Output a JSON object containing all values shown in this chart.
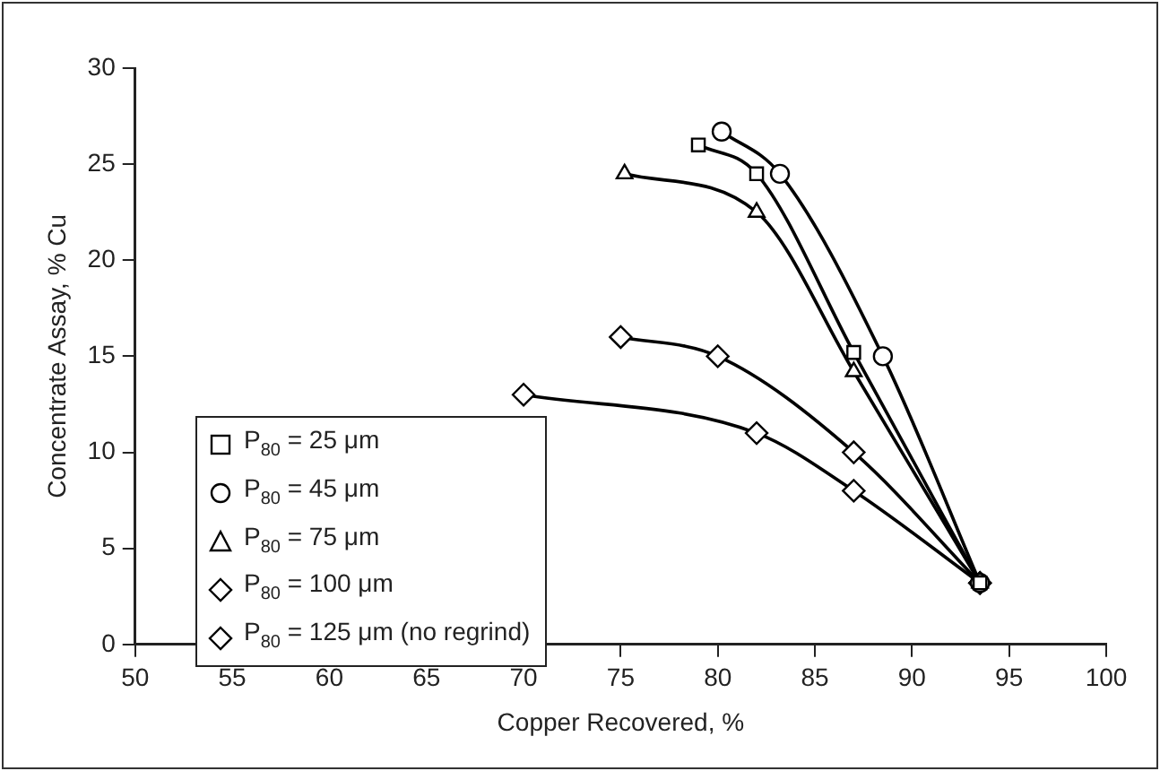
{
  "chart_data": {
    "type": "line",
    "xlabel": "Copper Recovered, %",
    "ylabel": "Concentrate Assay, % Cu",
    "xlim": [
      50,
      100
    ],
    "xticks": [
      50,
      55,
      60,
      65,
      70,
      75,
      80,
      85,
      90,
      95,
      100
    ],
    "ylim": [
      0,
      30
    ],
    "yticks": [
      0,
      5,
      10,
      15,
      20,
      25,
      30
    ],
    "grid": false,
    "legend": "bottom left",
    "series": [
      {
        "name": "P$_{80}$ = 25 μm",
        "color": "#000000",
        "marker": "square",
        "x": [
          79,
          82,
          87,
          93.5
        ],
        "values": [
          26,
          24.5,
          15.2,
          3.2
        ]
      },
      {
        "name": "P$_{80}$ = 45 μm",
        "color": "#000000",
        "marker": "circle",
        "x": [
          80.2,
          83.2,
          88.5,
          93.5
        ],
        "values": [
          26.7,
          24.5,
          15,
          3.2
        ]
      },
      {
        "name": "P$_{80}$ = 75 μm",
        "color": "#000000",
        "marker": "triangle",
        "x": [
          75.2,
          82,
          87,
          93.5
        ],
        "values": [
          24.5,
          22.5,
          14.2,
          3.2
        ]
      },
      {
        "name": "P$_{80}$ = 100 μm",
        "color": "#000000",
        "marker": "diamond",
        "x": [
          75,
          80,
          87,
          93.5
        ],
        "values": [
          16,
          15,
          10,
          3.2
        ]
      },
      {
        "name": "P$_{80}$ = 125 μm (no regrind)",
        "color": "#000000",
        "marker": "diamond",
        "x": [
          70,
          82,
          87,
          93.5
        ],
        "values": [
          13,
          11,
          8,
          3.2
        ]
      }
    ]
  }
}
